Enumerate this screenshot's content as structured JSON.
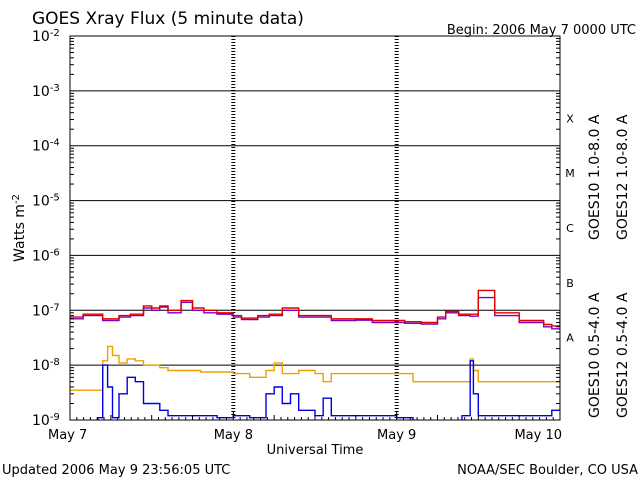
{
  "header": {
    "title": "GOES Xray Flux (5 minute data)",
    "begin_label": "Begin:  2006 May 7 0000 UTC"
  },
  "footer": {
    "updated": "Updated 2006 May  9 23:56:05 UTC",
    "credit": "NOAA/SEC Boulder, CO USA"
  },
  "chart_data": {
    "type": "line",
    "title": "GOES Xray Flux (5 minute data)",
    "xlabel": "Universal Time",
    "ylabel": "Watts m^-2",
    "yscale": "log",
    "ylim": [
      1e-09,
      0.01
    ],
    "xlim_days": [
      0,
      3
    ],
    "x_tick_labels": [
      "May 7",
      "May 8",
      "May 9",
      "May 10"
    ],
    "y_tick_labels": [
      {
        "exp": -9,
        "text": "10",
        "sup": "-9"
      },
      {
        "exp": -8,
        "text": "10",
        "sup": "-8"
      },
      {
        "exp": -7,
        "text": "10",
        "sup": "-7"
      },
      {
        "exp": -6,
        "text": "10",
        "sup": "-6"
      },
      {
        "exp": -5,
        "text": "10",
        "sup": "-5"
      },
      {
        "exp": -4,
        "text": "10",
        "sup": "-4"
      },
      {
        "exp": -3,
        "text": "10",
        "sup": "-3"
      },
      {
        "exp": -2,
        "text": "10",
        "sup": "-2"
      }
    ],
    "flare_classes": [
      {
        "label": "A",
        "exp": -7.5
      },
      {
        "label": "B",
        "exp": -6.5
      },
      {
        "label": "C",
        "exp": -5.5
      },
      {
        "label": "M",
        "exp": -4.5
      },
      {
        "label": "X",
        "exp": -3.5
      }
    ],
    "grid": "horizontal lines at 1e-8 through 1e-3, dashed vertical day marks",
    "legend_position": "right, vertical text",
    "series": [
      {
        "name": "GOES10 1.0-8.0 A",
        "color": "#7b00c0",
        "x": [
          0,
          0.08,
          0.2,
          0.3,
          0.37,
          0.45,
          0.5,
          0.55,
          0.6,
          0.68,
          0.75,
          0.82,
          0.9,
          1.0,
          1.05,
          1.15,
          1.22,
          1.3,
          1.4,
          1.5,
          1.6,
          1.75,
          1.85,
          1.95,
          2.05,
          2.15,
          2.25,
          2.3,
          2.38,
          2.45,
          2.5,
          2.6,
          2.75,
          2.9,
          2.95,
          3.0
        ],
        "y": [
          7e-08,
          8e-08,
          6.5e-08,
          7.5e-08,
          8e-08,
          1.1e-07,
          1e-07,
          1.15e-07,
          9e-08,
          1.4e-07,
          1e-07,
          9e-08,
          8.5e-08,
          7.5e-08,
          6.8e-08,
          7.5e-08,
          8e-08,
          1e-07,
          7.5e-08,
          7.5e-08,
          6.5e-08,
          6.6e-08,
          6e-08,
          6e-08,
          5.8e-08,
          5.6e-08,
          7e-08,
          9e-08,
          8e-08,
          7.8e-08,
          1.7e-07,
          8e-08,
          6e-08,
          5e-08,
          4.6e-08,
          4.5e-08
        ]
      },
      {
        "name": "GOES12 1.0-8.0 A",
        "color": "#e00000",
        "x": [
          0,
          0.08,
          0.2,
          0.3,
          0.37,
          0.45,
          0.5,
          0.55,
          0.6,
          0.68,
          0.75,
          0.82,
          0.9,
          1.0,
          1.05,
          1.15,
          1.22,
          1.3,
          1.4,
          1.5,
          1.6,
          1.75,
          1.85,
          1.95,
          2.05,
          2.15,
          2.25,
          2.3,
          2.38,
          2.45,
          2.5,
          2.6,
          2.75,
          2.9,
          2.95,
          3.0
        ],
        "y": [
          7.5e-08,
          8.5e-08,
          7e-08,
          8e-08,
          8.5e-08,
          1.2e-07,
          1.1e-07,
          1.2e-07,
          1e-07,
          1.5e-07,
          1.1e-07,
          1e-07,
          9e-08,
          8e-08,
          7.2e-08,
          8e-08,
          8.5e-08,
          1.1e-07,
          8e-08,
          8e-08,
          7e-08,
          7e-08,
          6.5e-08,
          6.5e-08,
          6.2e-08,
          6e-08,
          7.5e-08,
          9.5e-08,
          8.5e-08,
          8.5e-08,
          2.3e-07,
          9e-08,
          6.5e-08,
          5.5e-08,
          5.2e-08,
          7e-08
        ]
      },
      {
        "name": "GOES10 0.5-4.0 A",
        "color": "#f0a000",
        "x": [
          0,
          0.17,
          0.2,
          0.23,
          0.26,
          0.3,
          0.35,
          0.4,
          0.45,
          0.55,
          0.6,
          0.7,
          0.8,
          0.9,
          1.0,
          1.1,
          1.2,
          1.25,
          1.3,
          1.4,
          1.5,
          1.55,
          1.6,
          1.75,
          1.8,
          2.0,
          2.1,
          2.2,
          2.4,
          2.45,
          2.47,
          2.5,
          2.6,
          2.8,
          2.95,
          3.0
        ],
        "y": [
          3.5e-09,
          3.5e-09,
          1.2e-08,
          2.2e-08,
          1.5e-08,
          1.1e-08,
          1.3e-08,
          1.2e-08,
          1e-08,
          9e-09,
          8e-09,
          8e-09,
          7.5e-09,
          7.5e-09,
          7e-09,
          6e-09,
          8e-09,
          1.1e-08,
          7e-09,
          8e-09,
          7e-09,
          5e-09,
          7e-09,
          7e-09,
          7e-09,
          7e-09,
          5e-09,
          5e-09,
          5e-09,
          1.3e-08,
          8e-09,
          5e-09,
          5e-09,
          5e-09,
          5e-09,
          6e-09
        ]
      },
      {
        "name": "GOES12 0.5-4.0 A",
        "color": "#0000e0",
        "x": [
          0,
          0.15,
          0.17,
          0.2,
          0.23,
          0.26,
          0.3,
          0.35,
          0.4,
          0.45,
          0.55,
          0.6,
          0.7,
          0.8,
          0.9,
          1.0,
          1.1,
          1.2,
          1.25,
          1.3,
          1.35,
          1.4,
          1.5,
          1.55,
          1.6,
          1.75,
          1.8,
          2.0,
          2.1,
          2.2,
          2.4,
          2.45,
          2.47,
          2.5,
          2.6,
          2.8,
          2.95,
          3.0
        ],
        "y": [
          7e-10,
          7e-10,
          1.1e-09,
          1e-08,
          4e-09,
          1.1e-09,
          3e-09,
          6e-09,
          5e-09,
          2e-09,
          1.5e-09,
          1.2e-09,
          1.2e-09,
          1.2e-09,
          1.1e-09,
          1.2e-09,
          1.1e-09,
          3e-09,
          4e-09,
          2e-09,
          3e-09,
          1.5e-09,
          1.2e-09,
          2.5e-09,
          1.2e-09,
          1.2e-09,
          1.2e-09,
          1.1e-09,
          9e-10,
          9e-10,
          1.2e-09,
          1.2e-08,
          3e-09,
          1.2e-09,
          1.2e-09,
          1.2e-09,
          1.5e-09,
          1.6e-09
        ]
      }
    ]
  }
}
